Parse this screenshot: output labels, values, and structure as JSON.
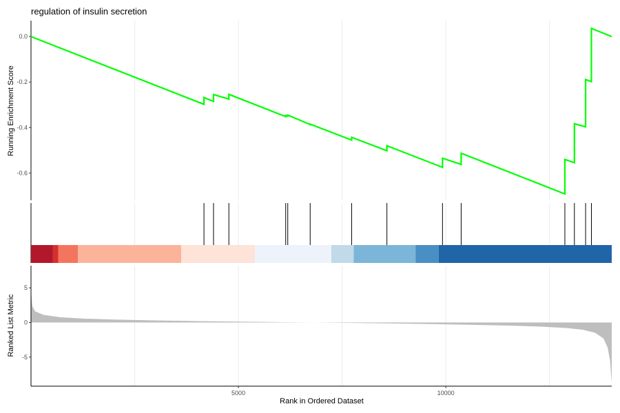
{
  "chart_data": {
    "type": "line",
    "title": "regulation of insulin secretion",
    "xlabel": "Rank in Ordered Dataset",
    "x_range": [
      0,
      14000
    ],
    "x_ticks": [
      5000,
      10000
    ],
    "x_tick_labels": [
      "5000",
      "10000"
    ],
    "grid": true,
    "colors": {
      "es_line": "#00ff00",
      "metric_fill": "#bebebe",
      "hit_line": "#000000"
    },
    "enrichment": {
      "ylabel": "Running Enrichment Score",
      "ylim": [
        -0.72,
        0.07
      ],
      "y_ticks": [
        0.0,
        -0.2,
        -0.4,
        -0.6
      ],
      "y_tick_labels": [
        "0.0",
        "-0.2",
        "-0.4",
        "-0.6"
      ],
      "points": [
        [
          0,
          0.0
        ],
        [
          4170,
          -0.298
        ],
        [
          4170,
          -0.268
        ],
        [
          4400,
          -0.285
        ],
        [
          4400,
          -0.255
        ],
        [
          4770,
          -0.275
        ],
        [
          4770,
          -0.254
        ],
        [
          6140,
          -0.352
        ],
        [
          6140,
          -0.347
        ],
        [
          6190,
          -0.35
        ],
        [
          6190,
          -0.345
        ],
        [
          6730,
          -0.387
        ],
        [
          6730,
          -0.385
        ],
        [
          7730,
          -0.455
        ],
        [
          7730,
          -0.443
        ],
        [
          8580,
          -0.502
        ],
        [
          8580,
          -0.48
        ],
        [
          9920,
          -0.575
        ],
        [
          9920,
          -0.535
        ],
        [
          10370,
          -0.562
        ],
        [
          10370,
          -0.513
        ],
        [
          12870,
          -0.692
        ],
        [
          12870,
          -0.54
        ],
        [
          13100,
          -0.555
        ],
        [
          13100,
          -0.383
        ],
        [
          13370,
          -0.397
        ],
        [
          13370,
          -0.189
        ],
        [
          13510,
          -0.198
        ],
        [
          13510,
          0.036
        ],
        [
          14000,
          0.0
        ]
      ]
    },
    "hits": [
      4170,
      4400,
      4770,
      6140,
      6190,
      6730,
      7730,
      8580,
      9920,
      10370,
      12870,
      13100,
      13370,
      13510
    ],
    "color_band": [
      {
        "from": 0,
        "to": 530,
        "color": "#b2182b"
      },
      {
        "from": 530,
        "to": 660,
        "color": "#d6302c"
      },
      {
        "from": 660,
        "to": 1130,
        "color": "#f4755e"
      },
      {
        "from": 1130,
        "to": 3620,
        "color": "#fbb49a"
      },
      {
        "from": 3620,
        "to": 5400,
        "color": "#fde3d8"
      },
      {
        "from": 5400,
        "to": 7240,
        "color": "#eef3fb"
      },
      {
        "from": 7240,
        "to": 7780,
        "color": "#c1d9e8"
      },
      {
        "from": 7780,
        "to": 9270,
        "color": "#7bb5d8"
      },
      {
        "from": 9270,
        "to": 9830,
        "color": "#4a8fc4"
      },
      {
        "from": 9830,
        "to": 14000,
        "color": "#2165a9"
      }
    ],
    "ranked_metric": {
      "ylabel": "Ranked List Metric",
      "ylim": [
        -9.2,
        8.2
      ],
      "y_ticks": [
        5,
        0,
        -5
      ],
      "y_tick_labels": [
        "5",
        "0",
        "-5"
      ],
      "profile": [
        [
          0,
          4.6
        ],
        [
          30,
          2.4
        ],
        [
          100,
          1.6
        ],
        [
          300,
          1.1
        ],
        [
          700,
          0.75
        ],
        [
          1300,
          0.55
        ],
        [
          2000,
          0.42
        ],
        [
          3000,
          0.3
        ],
        [
          4000,
          0.2
        ],
        [
          5000,
          0.12
        ],
        [
          6000,
          0.05
        ],
        [
          6800,
          0.0
        ],
        [
          7600,
          -0.06
        ],
        [
          8500,
          -0.13
        ],
        [
          9500,
          -0.22
        ],
        [
          10500,
          -0.32
        ],
        [
          11500,
          -0.45
        ],
        [
          12300,
          -0.6
        ],
        [
          12900,
          -0.8
        ],
        [
          13300,
          -1.05
        ],
        [
          13600,
          -1.5
        ],
        [
          13800,
          -2.3
        ],
        [
          13900,
          -3.6
        ],
        [
          13960,
          -5.5
        ],
        [
          14000,
          -8.8
        ]
      ]
    }
  }
}
